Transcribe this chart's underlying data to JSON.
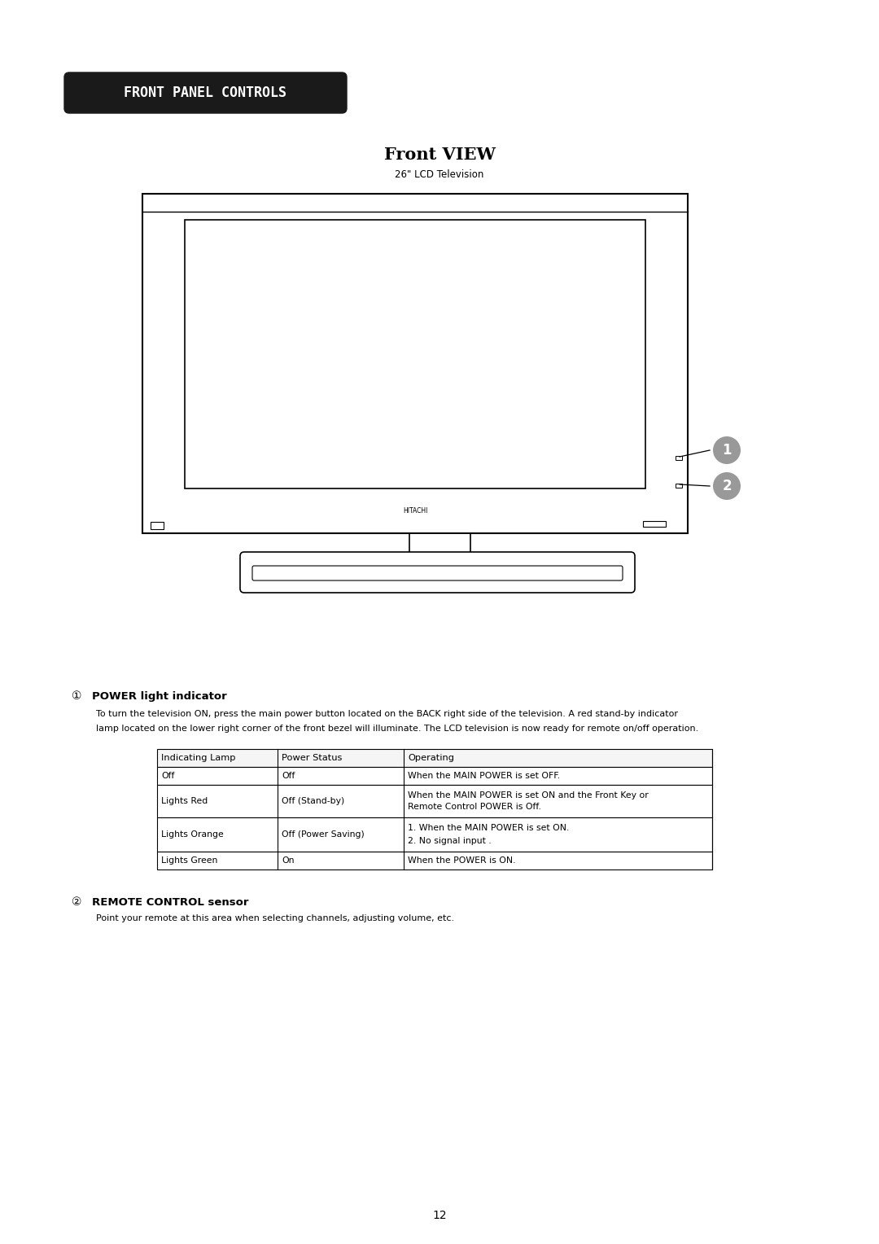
{
  "page_title": "FRONT PANEL CONTROLS",
  "section_title": "Front VIEW",
  "subtitle": "26\" LCD Television",
  "section1_num": "①",
  "section1_title": "POWER light indicator",
  "section1_body_line1": "To turn the television ON, press the main power button located on the BACK right side of the television. A red stand-by indicator",
  "section1_body_line2": "lamp located on the lower right corner of the front bezel will illuminate. The LCD television is now ready for remote on/off operation.",
  "table_headers": [
    "Indicating Lamp",
    "Power Status",
    "Operating"
  ],
  "table_rows": [
    [
      "Off",
      "Off",
      "When the MAIN POWER is set OFF."
    ],
    [
      "Lights Red",
      "Off (Stand-by)",
      "When the MAIN POWER is set ON and the Front Key or\nRemote Control POWER is Off."
    ],
    [
      "Lights Orange",
      "Off (Power Saving)",
      "1. When the MAIN POWER is set ON.\n2. No signal input ."
    ],
    [
      "Lights Green",
      "On",
      "When the POWER is ON."
    ]
  ],
  "section2_num": "②",
  "section2_title": "REMOTE CONTROL sensor",
  "section2_body": "Point your remote at this area when selecting channels, adjusting volume, etc.",
  "page_number": "12",
  "bg_color": "#ffffff",
  "text_color": "#000000",
  "header_bg": "#1a1a1a",
  "header_text": "#ffffff",
  "badge_color": "#999999"
}
